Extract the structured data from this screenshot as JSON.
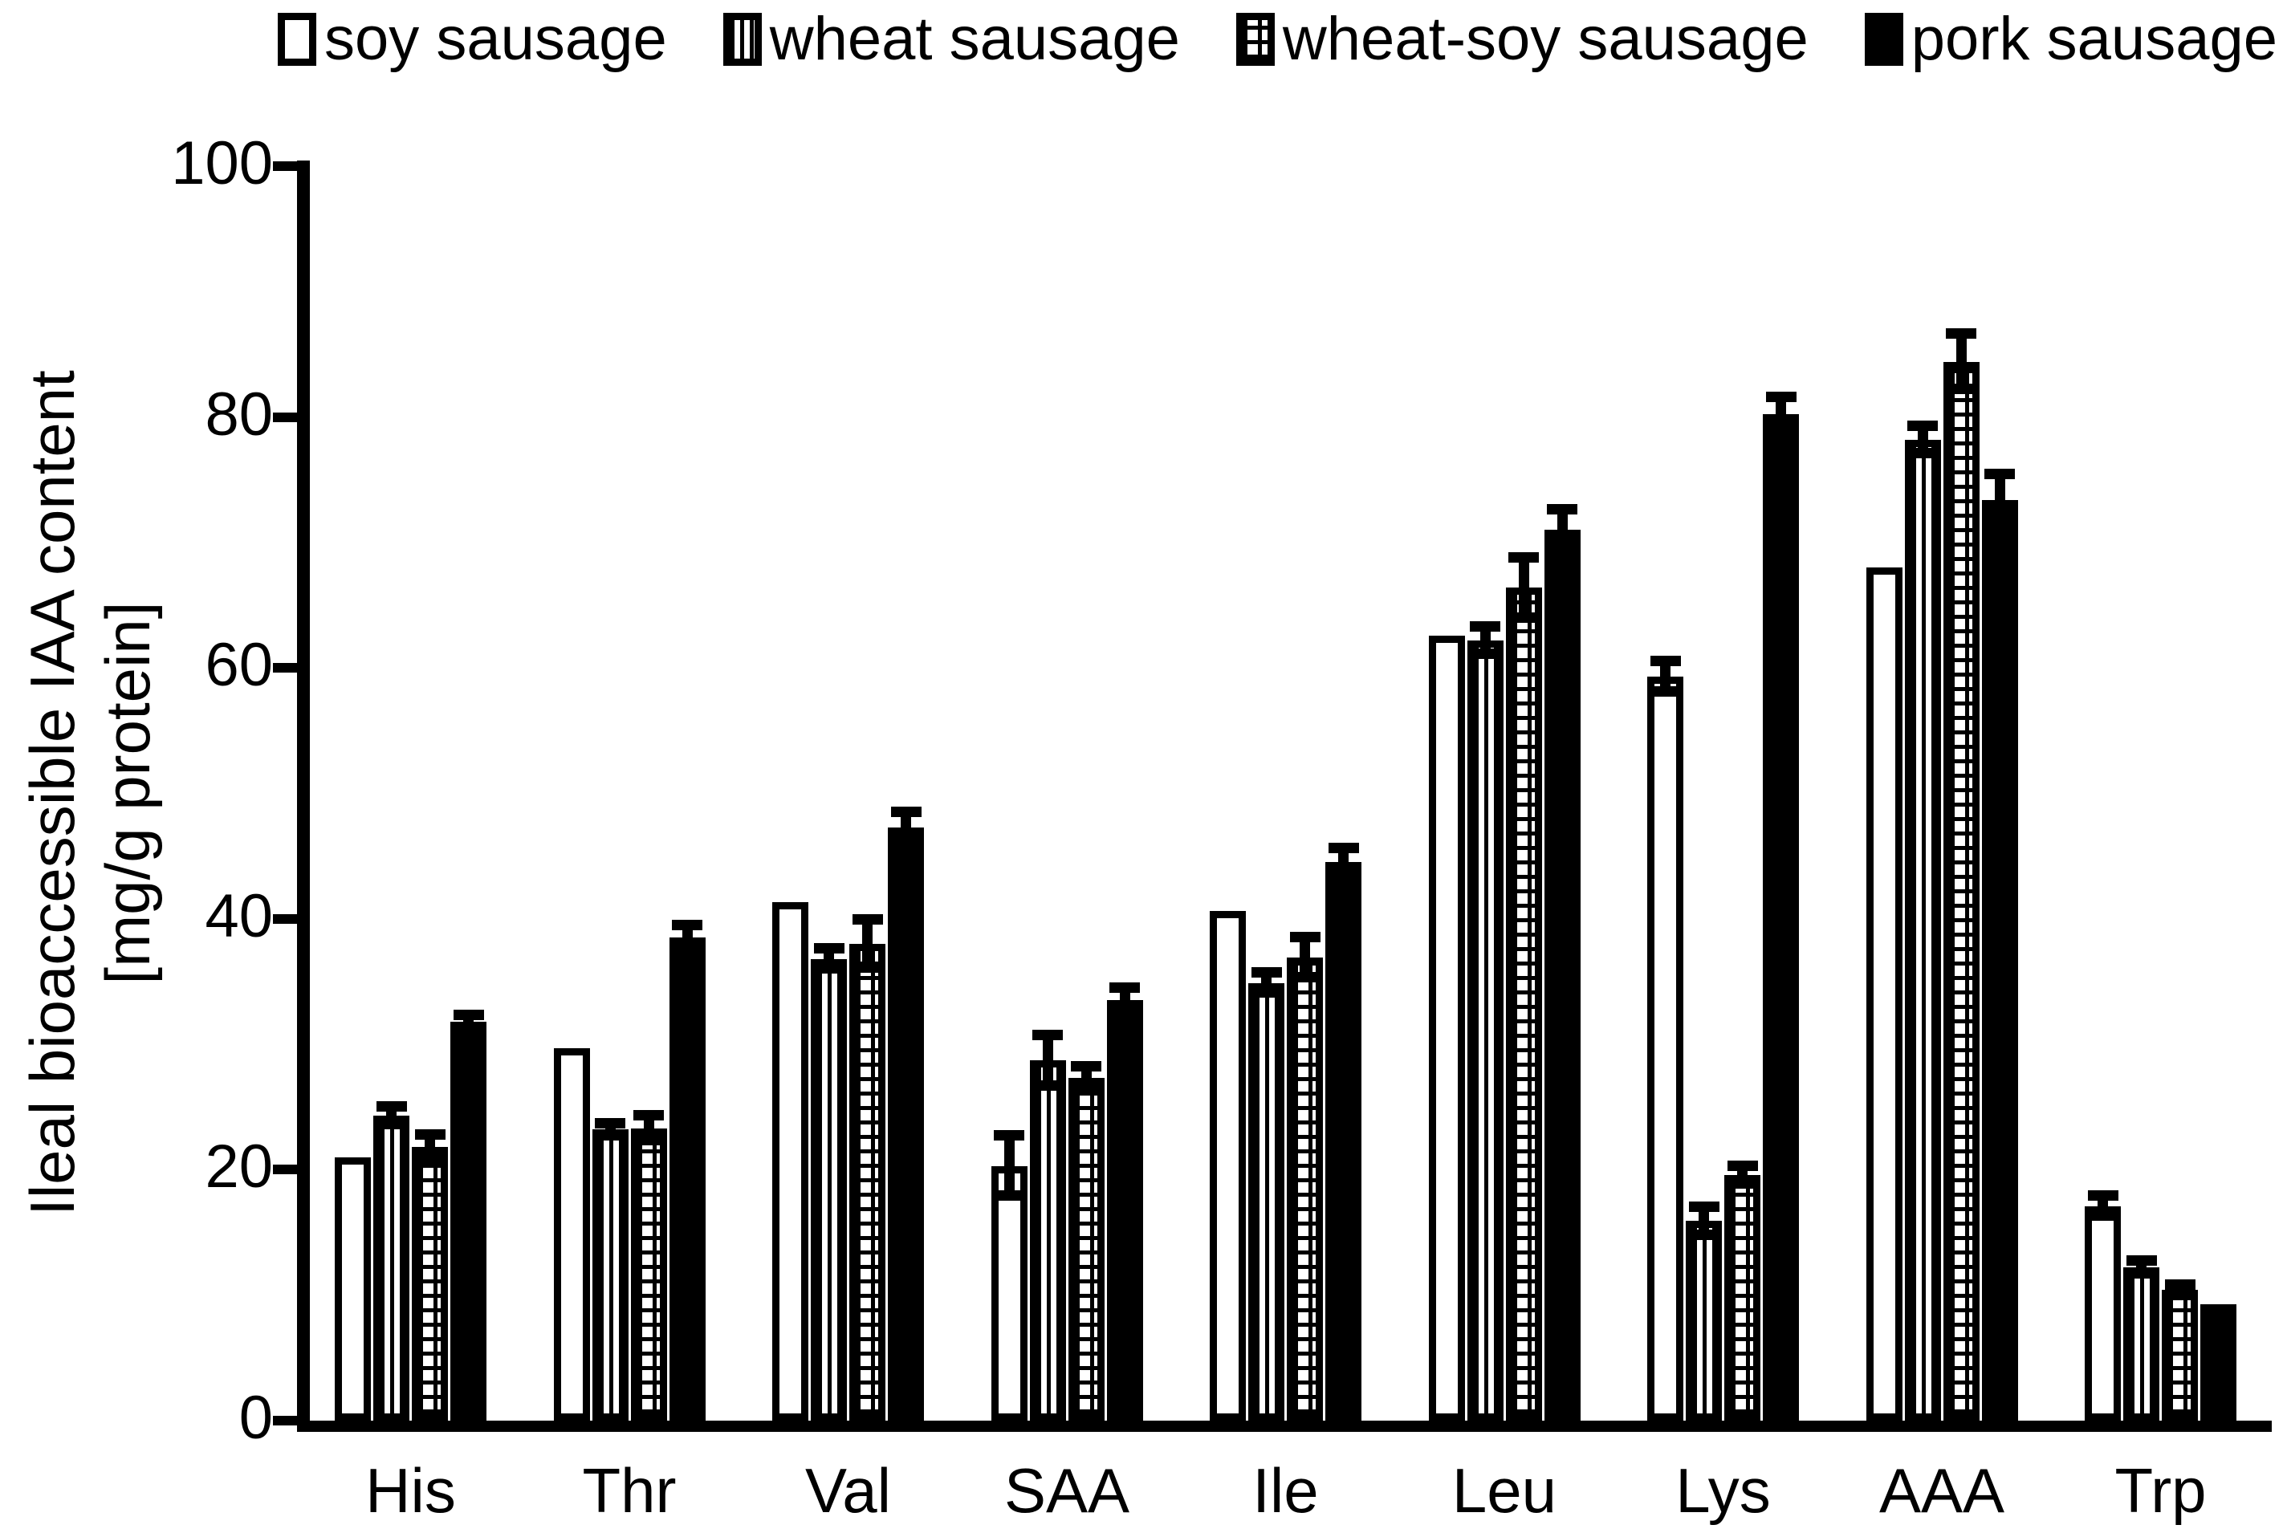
{
  "chart_data": {
    "type": "bar",
    "title": "",
    "ylabel_lines": [
      "Ileal bioaccessible IAA content",
      "[mg/g protein]"
    ],
    "xlabel": "",
    "ylim": [
      0,
      100
    ],
    "yticks": [
      0,
      20,
      40,
      60,
      80,
      100
    ],
    "grid": false,
    "legend_position": "top",
    "categories": [
      "His",
      "Thr",
      "Val",
      "SAA",
      "Ile",
      "Leu",
      "Lys",
      "AAA",
      "Trp"
    ],
    "series": [
      {
        "name": "soy sausage",
        "pattern": "plain",
        "values": [
          21.0,
          29.7,
          41.3,
          20.3,
          40.6,
          62.6,
          59.3,
          68.0,
          17.1
        ],
        "errors": [
          0,
          0,
          0,
          2.4,
          0,
          0,
          1.2,
          0,
          0.8
        ]
      },
      {
        "name": "wheat sausage",
        "pattern": "vertical-stripes",
        "values": [
          24.3,
          23.2,
          36.8,
          28.7,
          34.9,
          62.2,
          15.9,
          78.2,
          12.2
        ],
        "errors": [
          0.7,
          0.5,
          0.8,
          2.0,
          0.8,
          1.1,
          1.1,
          1.1,
          0.5
        ]
      },
      {
        "name": "wheat-soy sausage",
        "pattern": "grid",
        "values": [
          21.8,
          23.3,
          38.0,
          27.3,
          36.9,
          66.4,
          19.6,
          84.4,
          10.4
        ],
        "errors": [
          1.0,
          1.0,
          1.9,
          0.9,
          1.6,
          2.4,
          0.7,
          2.2,
          0.4
        ]
      },
      {
        "name": "pork sausage",
        "pattern": "solid",
        "values": [
          31.8,
          38.5,
          47.3,
          33.5,
          44.5,
          71.0,
          80.2,
          73.4,
          9.3
        ],
        "errors": [
          0.5,
          1.0,
          1.2,
          1.0,
          1.1,
          1.6,
          1.4,
          2.0,
          0
        ]
      }
    ],
    "colors": {
      "foreground": "#000000",
      "background": "#ffffff"
    }
  }
}
